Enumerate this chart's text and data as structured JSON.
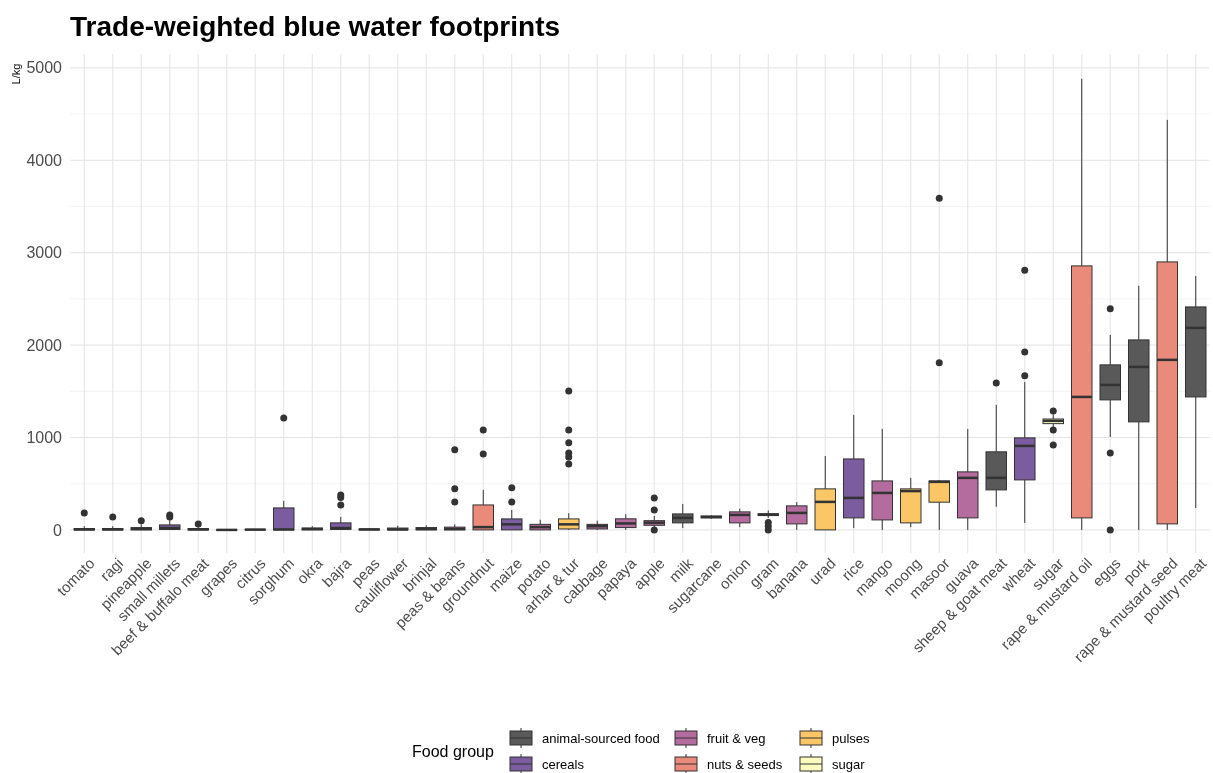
{
  "chart_data": {
    "type": "box",
    "title": "Trade-weighted blue water footprints",
    "ylabel": "L/kg",
    "legend_title": "Food group",
    "legend": "bottom",
    "grid": true,
    "categories": [
      "tomato",
      "ragi",
      "pineapple",
      "small millets",
      "beef & buffalo meat",
      "grapes",
      "citrus",
      "sorghum",
      "okra",
      "bajra",
      "peas",
      "cauliflower",
      "brinjal",
      "peas & beans",
      "groundnut",
      "maize",
      "potato",
      "arhar & tur",
      "cabbage",
      "papaya",
      "apple",
      "milk",
      "sugarcane",
      "onion",
      "gram",
      "banana",
      "urad",
      "rice",
      "mango",
      "moong",
      "masoor",
      "guava",
      "sheep & goat meat",
      "wheat",
      "sugar",
      "rape & mustard oil",
      "eggs",
      "pork",
      "rape & mustard seed",
      "poultry meat"
    ],
    "ylim": [
      -250,
      5150
    ],
    "yticks": [
      0,
      {
        "value": 500,
        "label": null
      },
      1000,
      {
        "value": 1500,
        "label": null
      },
      2000,
      {
        "value": 2500,
        "label": null
      },
      3000,
      {
        "value": 3500,
        "label": null
      },
      4000,
      {
        "value": 4500,
        "label": null
      },
      5000
    ],
    "series": [
      {
        "name": "animal-sourced food",
        "color": "#595959",
        "boxes": [
          null,
          null,
          null,
          null,
          {
            "low": 0,
            "q1": 0,
            "median": 5,
            "q3": 15,
            "high": 40,
            "outliers": [
              65
            ]
          },
          null,
          null,
          null,
          null,
          null,
          null,
          null,
          null,
          null,
          null,
          null,
          null,
          null,
          null,
          null,
          null,
          {
            "low": 20,
            "q1": 76,
            "median": 130,
            "q3": 173,
            "high": 281
          },
          null,
          null,
          null,
          null,
          null,
          null,
          null,
          null,
          null,
          null,
          {
            "low": 250,
            "q1": 433,
            "median": 563,
            "q3": 845,
            "high": 1353,
            "outliers": [
              1590
            ]
          },
          null,
          null,
          null,
          {
            "low": 1006,
            "q1": 1407,
            "median": 1569,
            "q3": 1786,
            "high": 2110,
            "outliers": [
              2392,
              833,
              0
            ]
          },
          {
            "low": 0,
            "q1": 1169,
            "median": 1764,
            "q3": 2056,
            "high": 2641
          },
          null,
          {
            "low": 238,
            "q1": 1439,
            "median": 2186,
            "q3": 2413,
            "high": 2749
          }
        ]
      },
      {
        "name": "cereals",
        "color": "#7b5c9e",
        "boxes": [
          null,
          {
            "low": 0,
            "q1": 0,
            "median": 5,
            "q3": 15,
            "high": 40,
            "outliers": [
              140
            ]
          },
          null,
          {
            "low": 0,
            "q1": 5,
            "median": 20,
            "q3": 54,
            "high": 110,
            "outliers": [
              162,
              140
            ]
          },
          null,
          null,
          null,
          {
            "low": 0,
            "q1": 0,
            "median": 5,
            "q3": 238,
            "high": 314,
            "outliers": [
              1212
            ]
          },
          null,
          {
            "low": 0,
            "q1": 5,
            "median": 20,
            "q3": 76,
            "high": 140,
            "outliers": [
              379,
              350,
              270
            ]
          },
          null,
          null,
          null,
          null,
          null,
          {
            "low": 0,
            "q1": 0,
            "median": 60,
            "q3": 119,
            "high": 216,
            "outliers": [
              455,
              303
            ]
          },
          null,
          null,
          null,
          null,
          null,
          null,
          null,
          null,
          null,
          null,
          null,
          {
            "low": 20,
            "q1": 130,
            "median": 346,
            "q3": 768,
            "high": 1245
          },
          null,
          null,
          null,
          null,
          null,
          {
            "low": 76,
            "q1": 541,
            "median": 909,
            "q3": 996,
            "high": 1602,
            "outliers": [
              2810,
              1926,
              1667
            ]
          },
          null,
          null,
          null,
          null,
          null,
          null
        ]
      },
      {
        "name": "fruit & veg",
        "color": "#b46b9d",
        "boxes": [
          {
            "low": 0,
            "q1": 0,
            "median": 5,
            "q3": 15,
            "high": 40,
            "outliers": [
              184
            ]
          },
          null,
          {
            "low": 0,
            "q1": 0,
            "median": 10,
            "q3": 25,
            "high": 60,
            "outliers": [
              100
            ]
          },
          null,
          null,
          {
            "low": 0,
            "q1": 0,
            "median": 0,
            "q3": 2,
            "high": 5
          },
          {
            "low": 0,
            "q1": 0,
            "median": 3,
            "q3": 6,
            "high": 10
          },
          null,
          {
            "low": 0,
            "q1": 0,
            "median": 10,
            "q3": 20,
            "high": 40
          },
          null,
          {
            "low": 0,
            "q1": 0,
            "median": 5,
            "q3": 10,
            "high": 20
          },
          {
            "low": 0,
            "q1": 0,
            "median": 5,
            "q3": 20,
            "high": 45
          },
          {
            "low": 0,
            "q1": 0,
            "median": 10,
            "q3": 25,
            "high": 50
          },
          {
            "low": 0,
            "q1": 0,
            "median": 10,
            "q3": 30,
            "high": 60,
            "outliers": [
              866,
              444,
              303
            ]
          },
          null,
          null,
          {
            "low": 0,
            "q1": 0,
            "median": 30,
            "q3": 60,
            "high": 110
          },
          null,
          {
            "low": 0,
            "q1": 10,
            "median": 40,
            "q3": 60,
            "high": 100
          },
          {
            "low": 0,
            "q1": 25,
            "median": 70,
            "q3": 120,
            "high": 170
          },
          {
            "low": 20,
            "q1": 50,
            "median": 78,
            "q3": 100,
            "high": 150,
            "outliers": [
              346,
              216,
              0
            ]
          },
          null,
          null,
          {
            "low": 30,
            "q1": 76,
            "median": 162,
            "q3": 195,
            "high": 230
          },
          null,
          {
            "low": 0,
            "q1": 65,
            "median": 184,
            "q3": 260,
            "high": 300
          },
          null,
          null,
          {
            "low": 0,
            "q1": 108,
            "median": 400,
            "q3": 530,
            "high": 1093
          },
          null,
          null,
          {
            "low": 0,
            "q1": 130,
            "median": 563,
            "q3": 628,
            "high": 1093
          },
          null,
          null,
          null,
          null,
          null,
          null,
          null,
          null
        ]
      },
      {
        "name": "nuts & seeds",
        "color": "#e98a7b",
        "boxes": [
          null,
          null,
          null,
          null,
          null,
          null,
          null,
          null,
          null,
          null,
          null,
          null,
          null,
          null,
          {
            "low": 0,
            "q1": 0,
            "median": 30,
            "q3": 270,
            "high": 433,
            "outliers": [
              1082,
              822
            ]
          },
          null,
          null,
          null,
          null,
          null,
          null,
          null,
          null,
          null,
          null,
          null,
          null,
          null,
          null,
          null,
          null,
          null,
          null,
          null,
          null,
          {
            "low": 0,
            "q1": 130,
            "median": 1439,
            "q3": 2857,
            "high": 4881
          },
          null,
          null,
          {
            "low": 0,
            "q1": 65,
            "median": 1840,
            "q3": 2900,
            "high": 4437
          },
          null
        ]
      },
      {
        "name": "pulses",
        "color": "#fbc666",
        "boxes": [
          null,
          null,
          null,
          null,
          null,
          null,
          null,
          null,
          null,
          null,
          null,
          null,
          null,
          null,
          null,
          null,
          null,
          {
            "low": 0,
            "q1": 10,
            "median": 60,
            "q3": 119,
            "high": 180,
            "outliers": [
              1504,
              1082,
              942,
              833,
              790,
              714
            ]
          },
          null,
          null,
          null,
          null,
          null,
          null,
          {
            "low": 130,
            "q1": 155,
            "median": 165,
            "q3": 175,
            "high": 210,
            "outliers": [
              80,
              40,
              0
            ]
          },
          null,
          {
            "low": 0,
            "q1": 0,
            "median": 303,
            "q3": 444,
            "high": 800
          },
          null,
          null,
          {
            "low": 30,
            "q1": 76,
            "median": 420,
            "q3": 444,
            "high": 563
          },
          {
            "low": 0,
            "q1": 300,
            "median": 520,
            "q3": 530,
            "high": 540,
            "outliers": [
              3590,
              1810
            ]
          },
          null,
          null,
          null,
          null,
          null,
          null,
          null,
          null,
          null
        ]
      },
      {
        "name": "sugar",
        "color": "#fcfbbf",
        "boxes": [
          null,
          null,
          null,
          null,
          null,
          null,
          null,
          null,
          null,
          null,
          null,
          null,
          null,
          null,
          null,
          null,
          null,
          null,
          null,
          null,
          null,
          null,
          {
            "low": 120,
            "q1": 130,
            "median": 140,
            "q3": 150,
            "high": 160
          },
          null,
          null,
          null,
          null,
          null,
          null,
          null,
          null,
          null,
          null,
          null,
          {
            "low": 1100,
            "q1": 1150,
            "median": 1180,
            "q3": 1200,
            "high": 1250,
            "outliers": [
              1288,
              1082,
              920
            ]
          },
          null,
          null,
          null,
          null,
          null
        ]
      }
    ]
  }
}
